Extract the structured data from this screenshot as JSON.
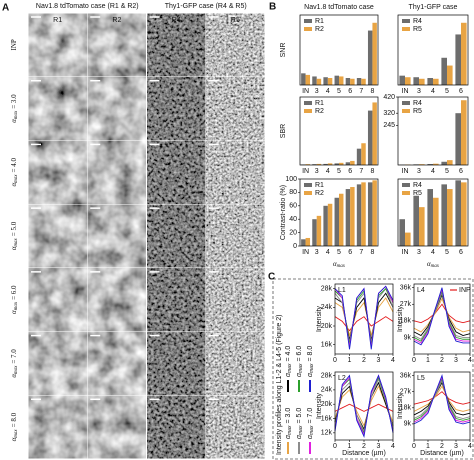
{
  "panel_a": {
    "label": "A",
    "headers": [
      "Nav1.8 tdTomato case (R1 & R2)",
      "Thy1-GFP case (R4 & R5)"
    ],
    "columns": [
      "R1",
      "R2",
      "R4",
      "R5"
    ],
    "rows": [
      {
        "text": "INP"
      },
      {
        "symbol": "α",
        "sub": "max",
        "text": "= 3.0"
      },
      {
        "symbol": "α",
        "sub": "max",
        "text": "= 4.0"
      },
      {
        "symbol": "α",
        "sub": "max",
        "text": "= 5.0"
      },
      {
        "symbol": "α",
        "sub": "max",
        "text": "= 6.0"
      },
      {
        "symbol": "α",
        "sub": "max",
        "text": "= 7.0"
      },
      {
        "symbol": "α",
        "sub": "max",
        "text": "= 8.0"
      }
    ]
  },
  "panel_b": {
    "label": "B",
    "titles": [
      "Nav1.8 tdTomato case",
      "Thy1-GFP case"
    ],
    "ylabels": [
      "SNR",
      "SBR",
      "Contrast-ratio (%)"
    ],
    "xlabel": {
      "symbol": "α",
      "sub": "max"
    },
    "rows": [
      [
        {
          "type": "bar",
          "categories": [
            "IN",
            "3",
            "4",
            "5",
            "6",
            "7",
            "8"
          ],
          "ylim": [
            0,
            90
          ],
          "series": [
            {
              "name": "R1",
              "color": "#6d6d6d",
              "values": [
                15,
                11,
                10,
                12,
                9,
                9,
                70
              ]
            },
            {
              "name": "R2",
              "color": "#e8a444",
              "values": [
                13,
                8,
                9,
                11,
                8,
                8,
                80
              ]
            }
          ]
        },
        {
          "type": "bar",
          "categories": [
            "IN",
            "3",
            "4",
            "5",
            "6"
          ],
          "ylim": [
            0,
            90
          ],
          "series": [
            {
              "name": "R4",
              "color": "#6d6d6d",
              "values": [
                12,
                10,
                9,
                35,
                65
              ]
            },
            {
              "name": "R5",
              "color": "#e8a444",
              "values": [
                10,
                8,
                8,
                25,
                80
              ]
            }
          ]
        }
      ],
      [
        {
          "type": "bar",
          "categories": [
            "IN",
            "3",
            "4",
            "5",
            "6",
            "7",
            "8"
          ],
          "ylim": [
            0,
            250
          ],
          "series": [
            {
              "name": "R1",
              "color": "#6d6d6d",
              "values": [
                2,
                3,
                4,
                6,
                10,
                60,
                200
              ]
            },
            {
              "name": "R2",
              "color": "#e8a444",
              "values": [
                3,
                4,
                6,
                8,
                15,
                80,
                230
              ]
            }
          ]
        },
        {
          "type": "bar",
          "categories": [
            "IN",
            "3",
            "4",
            "5",
            "6"
          ],
          "ylim": [
            0,
            420
          ],
          "yticks": [
            245,
            320,
            420
          ],
          "series": [
            {
              "name": "R4",
              "color": "#6d6d6d",
              "values": [
                2,
                4,
                6,
                20,
                320
              ]
            },
            {
              "name": "R5",
              "color": "#e8a444",
              "values": [
                3,
                5,
                8,
                30,
                400
              ]
            }
          ]
        }
      ],
      [
        {
          "type": "bar",
          "categories": [
            "IN",
            "3",
            "4",
            "5",
            "6",
            "7",
            "8"
          ],
          "ylim": [
            0,
            100
          ],
          "yticks": [
            0,
            20,
            40,
            60,
            80,
            100
          ],
          "series": [
            {
              "name": "R1",
              "color": "#6d6d6d",
              "values": [
                10,
                40,
                60,
                72,
                85,
                92,
                95
              ]
            },
            {
              "name": "R2",
              "color": "#e8a444",
              "values": [
                12,
                45,
                63,
                78,
                88,
                95,
                98
              ]
            }
          ]
        },
        {
          "type": "bar",
          "categories": [
            "IN",
            "3",
            "4",
            "5",
            "6"
          ],
          "ylim": [
            0,
            100
          ],
          "series": [
            {
              "name": "R4",
              "color": "#6d6d6d",
              "values": [
                40,
                75,
                85,
                92,
                98
              ]
            },
            {
              "name": "R5",
              "color": "#e8a444",
              "values": [
                20,
                58,
                72,
                85,
                95
              ]
            }
          ]
        }
      ]
    ]
  },
  "panel_c": {
    "label": "C",
    "side_title": "Intensity profiles along L1-2 & L4-5 (Figure 2)",
    "ylabel": "Intensity",
    "xlabel": "Distance (µm)",
    "legend": [
      {
        "name": "INP",
        "color": "#e41a1c"
      },
      {
        "symbol": "α",
        "sub": "max",
        "name": "= 3.0",
        "color": "#e8a444"
      },
      {
        "symbol": "α",
        "sub": "max",
        "name": "= 4.0",
        "color": "#000000"
      },
      {
        "symbol": "α",
        "sub": "max",
        "name": "= 5.0",
        "color": "#8c8c8c"
      },
      {
        "symbol": "α",
        "sub": "max",
        "name": "= 6.0",
        "color": "#2ca02c"
      },
      {
        "symbol": "α",
        "sub": "max",
        "name": "= 7.0",
        "color": "#e020e0"
      },
      {
        "symbol": "α",
        "sub": "max",
        "name": "= 8.0",
        "color": "#1f1fd0"
      }
    ],
    "x": [
      0,
      0.5,
      1,
      1.5,
      2,
      2.5,
      3,
      3.5,
      4
    ],
    "xlim": [
      0,
      4
    ],
    "xticks": [
      0,
      1,
      2,
      3,
      4
    ],
    "plots": [
      {
        "type": "line",
        "label": "L1",
        "ylim": [
          14000,
          29000
        ],
        "yticks": [
          {
            "value": 16000,
            "label": "16k"
          },
          {
            "value": 20000,
            "label": "20k"
          },
          {
            "value": 24000,
            "label": "24k"
          },
          {
            "value": 28000,
            "label": "28k"
          }
        ],
        "series": [
          [
            22000,
            21000,
            19000,
            21000,
            22000,
            20000,
            21000,
            22000,
            21000
          ],
          [
            25000,
            24000,
            18000,
            23000,
            25000,
            18000,
            24000,
            26000,
            23000
          ],
          [
            26000,
            25000,
            17000,
            24000,
            26000,
            17000,
            25000,
            27000,
            24000
          ],
          [
            27000,
            25000,
            16500,
            25000,
            27000,
            16500,
            26000,
            28000,
            24000
          ],
          [
            27500,
            26000,
            16000,
            25500,
            27500,
            16000,
            26500,
            28000,
            25000
          ],
          [
            28000,
            26000,
            15500,
            26000,
            28000,
            15500,
            27000,
            28500,
            25000
          ],
          [
            28000,
            26500,
            15000,
            26000,
            28000,
            15000,
            27000,
            28500,
            25500
          ]
        ]
      },
      {
        "type": "line",
        "label": "L4",
        "ylim": [
          0,
          38000
        ],
        "yticks": [
          {
            "value": 9000,
            "label": "9k"
          },
          {
            "value": 18000,
            "label": "18k"
          },
          {
            "value": 27000,
            "label": "27k"
          },
          {
            "value": 36000,
            "label": "36k"
          }
        ],
        "series": [
          [
            18000,
            17000,
            19000,
            22000,
            27000,
            21000,
            18000,
            17000,
            18000
          ],
          [
            14000,
            12000,
            16000,
            22000,
            30000,
            20000,
            14000,
            12000,
            13000
          ],
          [
            12000,
            10000,
            15000,
            23000,
            32000,
            19000,
            12000,
            10000,
            11000
          ],
          [
            10000,
            8000,
            14000,
            23000,
            33000,
            18000,
            10000,
            9000,
            9000
          ],
          [
            9000,
            7000,
            13000,
            24000,
            34000,
            17000,
            9000,
            8000,
            8000
          ],
          [
            8000,
            6000,
            12000,
            24000,
            35000,
            16000,
            8000,
            7000,
            7000
          ],
          [
            7000,
            5000,
            11000,
            24000,
            36000,
            15000,
            7000,
            6000,
            6000
          ]
        ]
      },
      {
        "type": "line",
        "label": "L2",
        "ylim": [
          10000,
          29000
        ],
        "yticks": [
          {
            "value": 12000,
            "label": "12k"
          },
          {
            "value": 16000,
            "label": "16k"
          },
          {
            "value": 20000,
            "label": "20k"
          },
          {
            "value": 24000,
            "label": "24k"
          },
          {
            "value": 28000,
            "label": "28k"
          }
        ],
        "series": [
          [
            18000,
            19000,
            20000,
            19000,
            18000,
            19000,
            20000,
            19000,
            18000
          ],
          [
            16000,
            22000,
            24000,
            18000,
            14000,
            21000,
            25000,
            20000,
            15000
          ],
          [
            15000,
            23000,
            25000,
            17000,
            13000,
            22000,
            26000,
            20000,
            14000
          ],
          [
            14000,
            24000,
            26000,
            17000,
            12500,
            22000,
            27000,
            21000,
            13500
          ],
          [
            13500,
            25000,
            27000,
            16000,
            12000,
            23000,
            27500,
            21000,
            13000
          ],
          [
            13000,
            25000,
            27500,
            16000,
            11500,
            23000,
            28000,
            21500,
            12500
          ],
          [
            12500,
            25500,
            28000,
            15500,
            11000,
            23500,
            28000,
            22000,
            12000
          ]
        ]
      },
      {
        "type": "line",
        "label": "L5",
        "ylim": [
          0,
          38000
        ],
        "yticks": [
          {
            "value": 9000,
            "label": "9k"
          },
          {
            "value": 18000,
            "label": "18k"
          },
          {
            "value": 27000,
            "label": "27k"
          },
          {
            "value": 36000,
            "label": "36k"
          }
        ],
        "series": [
          [
            20000,
            21000,
            22000,
            24000,
            27000,
            23000,
            21000,
            20000,
            21000
          ],
          [
            16000,
            18000,
            20000,
            24000,
            30000,
            22000,
            17000,
            16000,
            17000
          ],
          [
            14000,
            16000,
            19000,
            25000,
            32000,
            21000,
            15000,
            14000,
            15000
          ],
          [
            12000,
            14000,
            18000,
            25000,
            33000,
            20000,
            13000,
            12000,
            13000
          ],
          [
            11000,
            13000,
            17000,
            26000,
            34000,
            19000,
            12000,
            11000,
            12000
          ],
          [
            10000,
            12000,
            16000,
            26000,
            35000,
            18000,
            11000,
            10000,
            11000
          ],
          [
            9000,
            11000,
            15000,
            26000,
            36000,
            17000,
            10000,
            9000,
            10000
          ]
        ]
      }
    ]
  }
}
